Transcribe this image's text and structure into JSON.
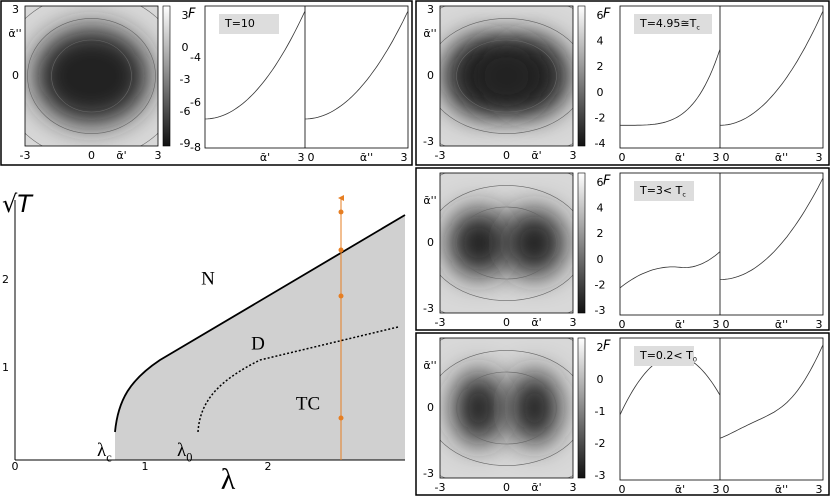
{
  "phase_diagram": {
    "y_label": "√T",
    "x_label": "λ",
    "x_ticks": [
      "0",
      "1",
      "2"
    ],
    "y_ticks": [
      "1",
      "2"
    ],
    "regions": [
      "N",
      "D",
      "TC"
    ],
    "markers": [
      {
        "text": "λ",
        "sub": "c"
      },
      {
        "text": "λ",
        "sub": "0"
      }
    ]
  },
  "panels": [
    {
      "heatmap_y_label": "ᾱ''",
      "heatmap_y_ticks": [
        "3",
        "0"
      ],
      "heatmap_x_ticks": [
        "-3",
        "0",
        "3"
      ],
      "heatmap_x_label": "ᾱ'",
      "colorbar_label": "F",
      "colorbar_ticks": [
        "3",
        "0",
        "-3",
        "-6",
        "-9"
      ],
      "temperature": {
        "text": "T=10"
      },
      "curve_y_ticks": [
        "-4",
        "-6",
        "-8"
      ],
      "left_curve_x_ticks": [
        "3"
      ],
      "left_curve_x_label": "ᾱ'",
      "right_curve_x_ticks": [
        "0",
        "3"
      ],
      "right_curve_x_label": "ᾱ''"
    },
    {
      "heatmap_y_label": "ᾱ''",
      "heatmap_y_ticks": [
        "3",
        "0",
        "-3"
      ],
      "heatmap_x_ticks": [
        "-3",
        "0",
        "3"
      ],
      "heatmap_x_label": "ᾱ'",
      "colorbar_label": "F",
      "colorbar_ticks": [
        "6",
        "4",
        "2",
        "0",
        "-2",
        "-4"
      ],
      "temperature": {
        "text": "T=4.95≅T",
        "sub": "c"
      },
      "curve_y_ticks": [],
      "left_curve_x_ticks": [
        "0",
        "3"
      ],
      "left_curve_x_label": "ᾱ'",
      "right_curve_x_ticks": [
        "0",
        "3"
      ],
      "right_curve_x_label": "ᾱ''"
    },
    {
      "heatmap_y_label": "ᾱ''",
      "heatmap_y_ticks": [
        "0",
        "-3"
      ],
      "heatmap_x_ticks": [
        "-3",
        "0",
        "3"
      ],
      "heatmap_x_label": "ᾱ'",
      "colorbar_label": "F",
      "colorbar_ticks": [
        "6",
        "4",
        "2",
        "0",
        "-2",
        "-3"
      ],
      "temperature": {
        "text": "T=3< T",
        "sub": "c"
      },
      "curve_y_ticks": [],
      "left_curve_x_ticks": [
        "0",
        "3"
      ],
      "left_curve_x_label": "ᾱ'",
      "right_curve_x_ticks": [
        "0",
        "3"
      ],
      "right_curve_x_label": "ᾱ''"
    },
    {
      "heatmap_y_label": "ᾱ''",
      "heatmap_y_ticks": [
        "0",
        "-3"
      ],
      "heatmap_x_ticks": [
        "-3",
        "0",
        "3"
      ],
      "heatmap_x_label": "ᾱ'",
      "colorbar_label": "F",
      "colorbar_ticks": [
        "2",
        "0",
        "-1",
        "-2",
        "-3"
      ],
      "temperature": {
        "text": "T=0.2< T",
        "sub": "0"
      },
      "curve_y_ticks": [],
      "left_curve_x_ticks": [
        "0",
        "3"
      ],
      "left_curve_x_label": "ᾱ'",
      "right_curve_x_ticks": [
        "0",
        "3"
      ],
      "right_curve_x_label": "ᾱ''"
    }
  ]
}
